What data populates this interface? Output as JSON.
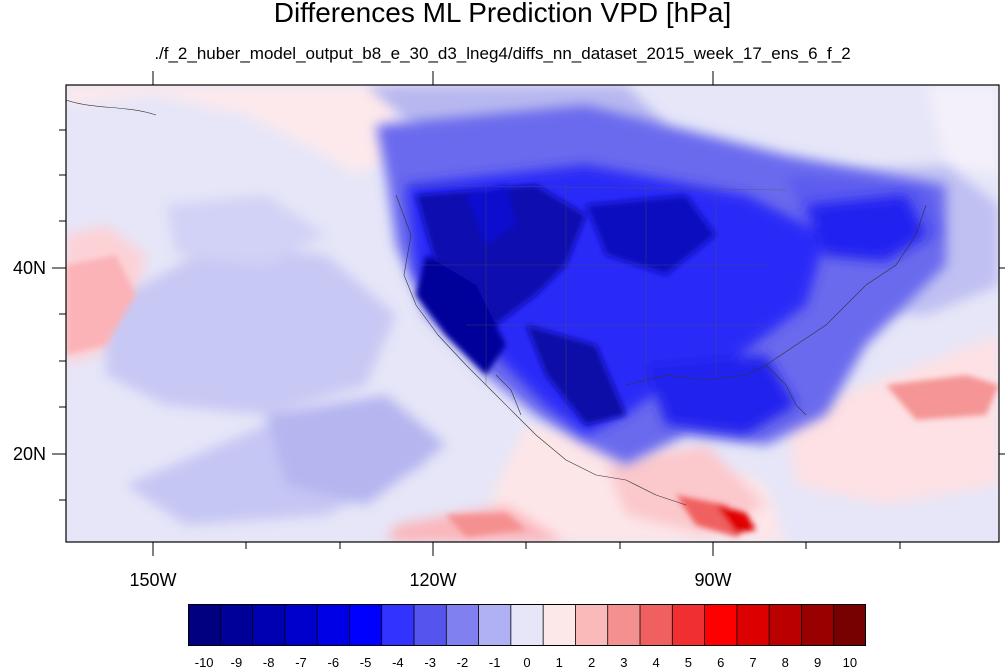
{
  "title": "Differences ML Prediction VPD [hPa]",
  "subtitle": "./f_2_huber_model_output_b8_e_30_d3_lneg4/diffs_nn_dataset_2015_week_17_ens_6_f_2",
  "map": {
    "lat_labels": [
      "40N",
      "20N"
    ],
    "lon_labels": [
      "150W",
      "120W",
      "90W"
    ]
  },
  "colorbar": {
    "labels": [
      "-10",
      "-9",
      "-8",
      "-7",
      "-6",
      "-5",
      "-4",
      "-3",
      "-2",
      "-1",
      "0",
      "1",
      "2",
      "3",
      "4",
      "5",
      "6",
      "7",
      "8",
      "9",
      "10"
    ],
    "colors": [
      "#000080",
      "#000099",
      "#0000b3",
      "#0000cc",
      "#0000e6",
      "#0000ff",
      "#3333ff",
      "#5555ee",
      "#8080f0",
      "#b0b0f5",
      "#e6e6f8",
      "#fce8e8",
      "#fbbaba",
      "#f59090",
      "#f06060",
      "#f03030",
      "#ff0000",
      "#dd0000",
      "#bb0000",
      "#990000",
      "#770000"
    ]
  }
}
